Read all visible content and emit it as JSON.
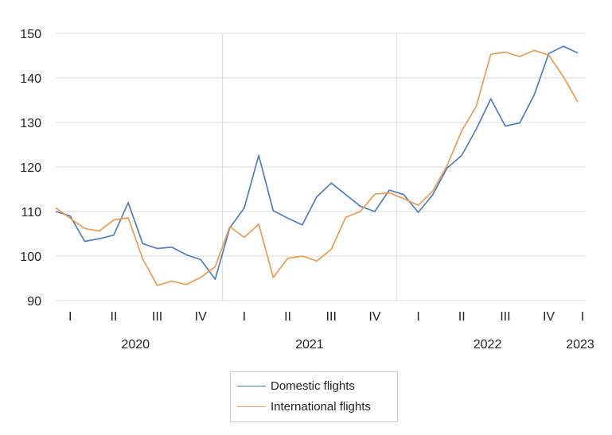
{
  "chart_data": {
    "type": "line",
    "y_ticks": [
      90,
      100,
      110,
      120,
      130,
      140,
      150
    ],
    "ylim": [
      90,
      150
    ],
    "quarter_labels": [
      "I",
      "II",
      "III",
      "IV",
      "I",
      "II",
      "III",
      "IV",
      "I",
      "II",
      "III",
      "IV",
      "I"
    ],
    "year_labels": [
      "2020",
      "2021",
      "2022",
      "2023"
    ],
    "grid": "horizontal",
    "legend_position": "bottom",
    "series": [
      {
        "name": "Domestic flights",
        "color": "#4f7ec0",
        "values": [
          110.0,
          109.0,
          103.3,
          103.9,
          104.7,
          112.0,
          102.8,
          101.7,
          102.0,
          100.3,
          99.2,
          94.8,
          106.3,
          110.8,
          122.6,
          110.2,
          108.5,
          107.0,
          113.3,
          116.4,
          113.8,
          111.2,
          110.0,
          114.8,
          113.8,
          109.8,
          113.8,
          119.8,
          122.6,
          128.5,
          135.3,
          129.2,
          129.9,
          136.2,
          145.5,
          147.1,
          145.6
        ]
      },
      {
        "name": "International flights",
        "color": "#ed9a54",
        "values": [
          110.8,
          108.5,
          106.2,
          105.6,
          108.1,
          108.6,
          99.4,
          93.4,
          94.4,
          93.6,
          95.2,
          97.6,
          106.6,
          104.2,
          107.2,
          95.2,
          99.5,
          100.0,
          98.9,
          101.5,
          108.7,
          110.0,
          113.9,
          114.2,
          112.9,
          111.4,
          114.6,
          120.4,
          128.1,
          133.6,
          145.3,
          145.8,
          144.8,
          146.2,
          145.1,
          140.3,
          134.6
        ]
      }
    ]
  }
}
